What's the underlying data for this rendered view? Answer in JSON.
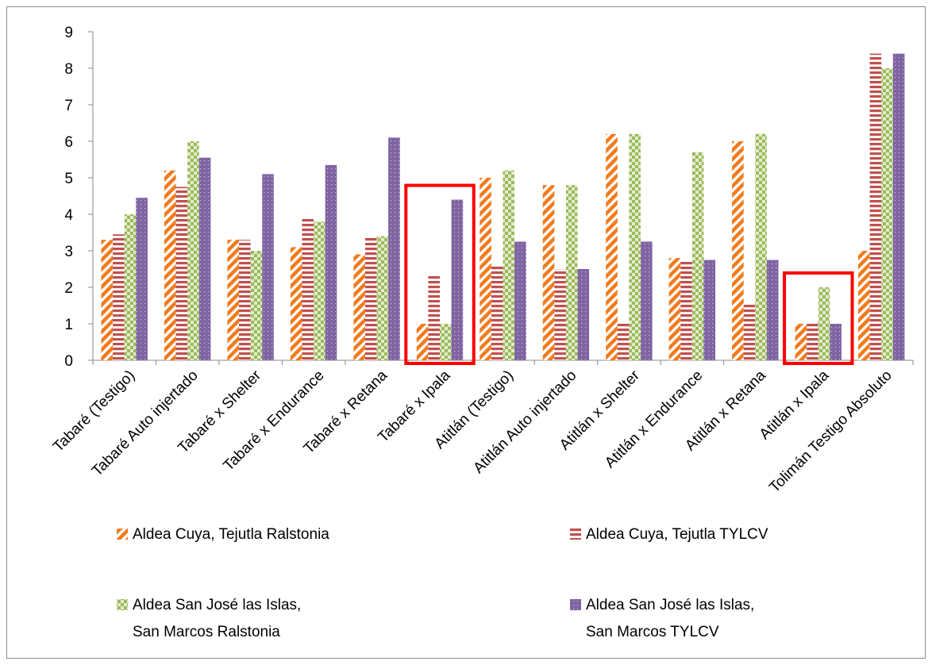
{
  "chart_data": {
    "type": "bar",
    "title": "",
    "xlabel": "",
    "ylabel": "",
    "ylim": [
      0,
      9
    ],
    "y_ticks": [
      "0",
      "1",
      "2",
      "3",
      "4",
      "5",
      "6",
      "7",
      "8",
      "9"
    ],
    "grid": false,
    "legend_position": "bottom",
    "categories": [
      "Tabaré (Testigo)",
      "Tabaré Auto injertado",
      "Tabaré x Shelter",
      "Tabaré x Endurance",
      "Tabaré x Retana",
      "Tabaré x Ipala",
      "Atitlán (Testigo)",
      "Atitlán Auto injertado",
      "Atitlán x Shelter",
      "Atitlán x Endurance",
      "Atitlán x Retana",
      "Atitlán x Ipala",
      "Tolimán Testigo Absoluto"
    ],
    "series": [
      {
        "name": "Aldea Cuya, Tejutla Ralstonia",
        "legend_lines": [
          "Aldea Cuya, Tejutla Ralstonia"
        ],
        "pattern": "diagonal-stripes",
        "color": "#f07b1c",
        "values": [
          3.3,
          5.2,
          3.3,
          3.1,
          2.9,
          1.0,
          5.0,
          4.8,
          6.2,
          2.8,
          6.0,
          1.0,
          3.0
        ]
      },
      {
        "name": "Aldea Cuya, Tejutla TYLCV",
        "legend_lines": [
          "Aldea Cuya, Tejutla TYLCV"
        ],
        "pattern": "horizontal-stripes",
        "color": "#c0504d",
        "values": [
          3.45,
          4.75,
          3.3,
          3.9,
          3.35,
          2.35,
          2.6,
          2.5,
          1.0,
          2.7,
          1.55,
          1.0,
          8.4
        ]
      },
      {
        "name": "Aldea San José las Islas, San Marcos Ralstonia",
        "legend_lines": [
          "Aldea San José las Islas,",
          "San Marcos Ralstonia"
        ],
        "pattern": "checker",
        "color": "#9bbb59",
        "values": [
          4.0,
          6.0,
          3.0,
          3.8,
          3.4,
          1.0,
          5.2,
          4.8,
          6.2,
          5.7,
          6.2,
          2.0,
          8.0
        ]
      },
      {
        "name": "Aldea San José las Islas, San Marcos TYLCV",
        "legend_lines": [
          "Aldea San José las Islas,",
          "San Marcos TYLCV"
        ],
        "pattern": "dotted",
        "color": "#8064a2",
        "values": [
          4.45,
          5.55,
          5.1,
          5.35,
          6.1,
          4.4,
          3.25,
          2.5,
          3.25,
          2.75,
          2.75,
          1.0,
          8.4
        ]
      }
    ],
    "highlights": [
      {
        "category": "Tabaré x Ipala",
        "color": "#ff0000"
      },
      {
        "category": "Atitlán x Ipala",
        "color": "#ff0000"
      }
    ]
  }
}
